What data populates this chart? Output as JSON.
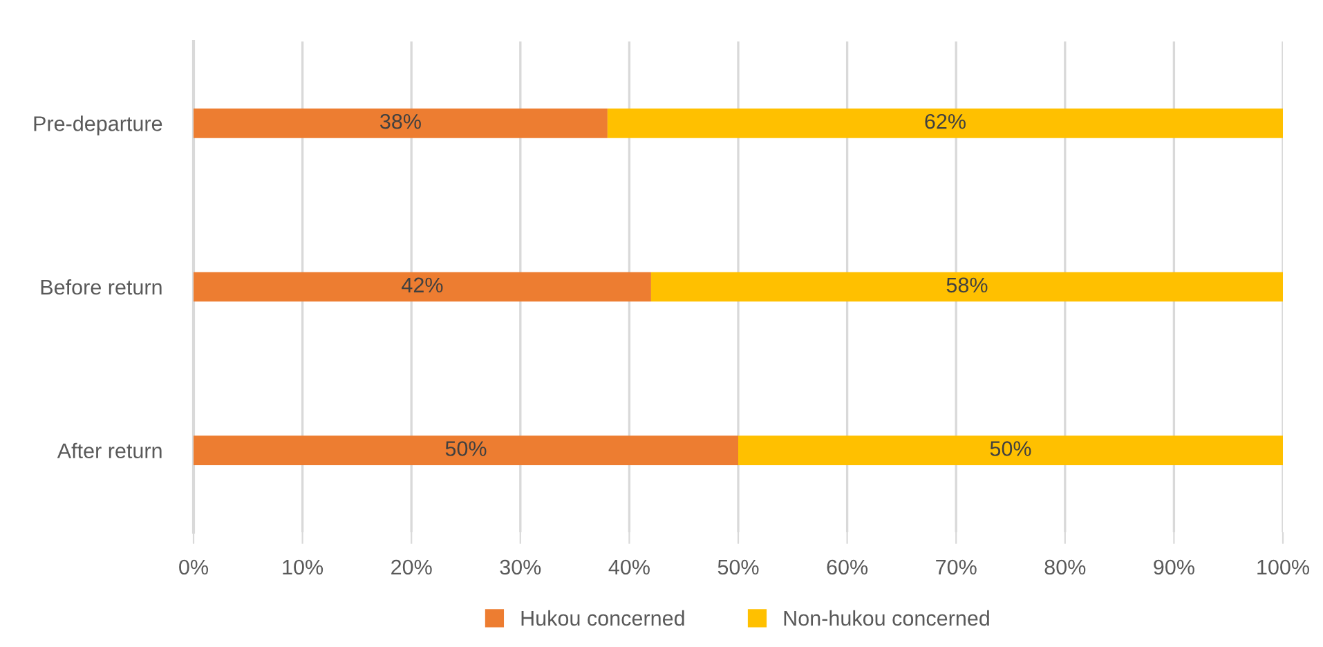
{
  "chart_data": {
    "type": "bar",
    "orientation": "horizontal",
    "stacked": true,
    "categories": [
      "Pre-departure",
      "Before return",
      "After return"
    ],
    "series": [
      {
        "name": "Hukou concerned",
        "color": "#ed7d31",
        "values": [
          38,
          42,
          50
        ],
        "value_labels": [
          "38%",
          "42%",
          "50%"
        ]
      },
      {
        "name": "Non-hukou concerned",
        "color": "#ffc000",
        "values": [
          62,
          58,
          50
        ],
        "value_labels": [
          "62%",
          "58%",
          "50%"
        ]
      }
    ],
    "xlim": [
      0,
      100
    ],
    "xticks": [
      {
        "value": 0,
        "label": "0%"
      },
      {
        "value": 10,
        "label": "10%"
      },
      {
        "value": 20,
        "label": "20%"
      },
      {
        "value": 30,
        "label": "30%"
      },
      {
        "value": 40,
        "label": "40%"
      },
      {
        "value": 50,
        "label": "50%"
      },
      {
        "value": 60,
        "label": "60%"
      },
      {
        "value": 70,
        "label": "70%"
      },
      {
        "value": 80,
        "label": "80%"
      },
      {
        "value": 90,
        "label": "90%"
      },
      {
        "value": 100,
        "label": "100%"
      }
    ],
    "grid": "x",
    "legend": "bottom"
  }
}
